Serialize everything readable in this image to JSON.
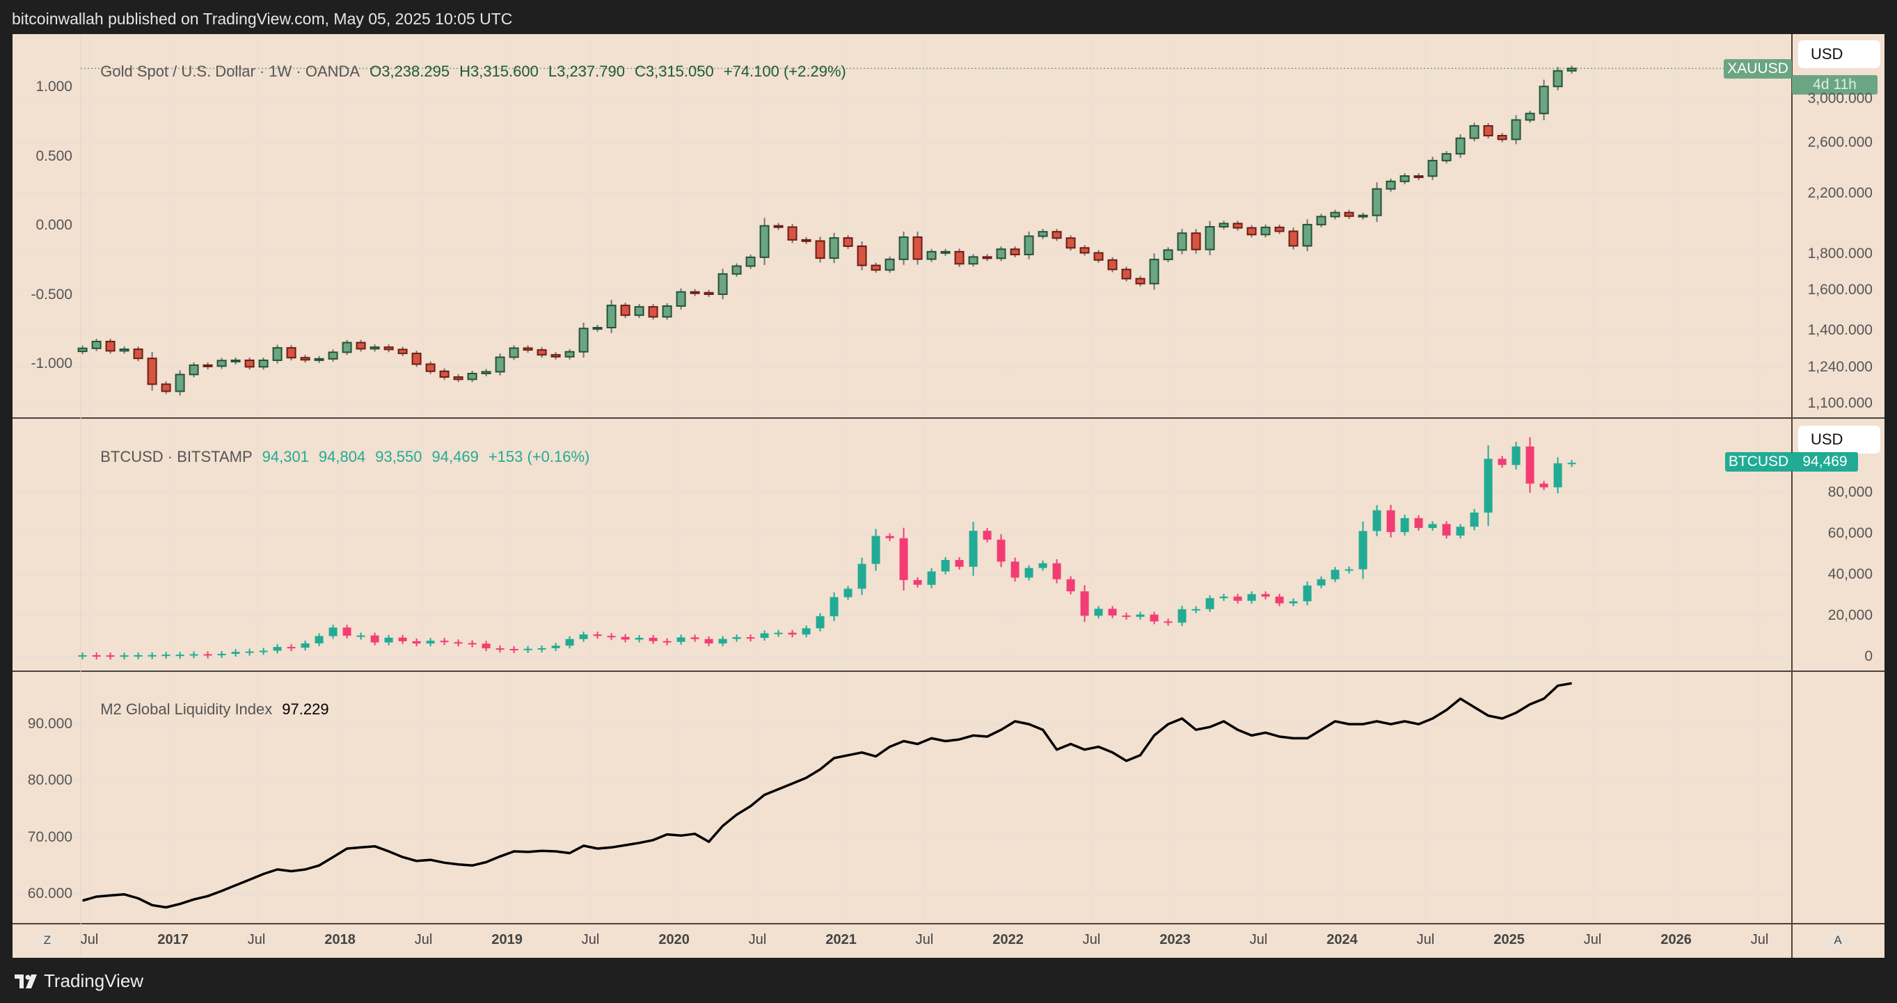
{
  "header": {
    "published": "bitcoinwallah published on TradingView.com, May 05, 2025 10:05 UTC"
  },
  "footer": {
    "brand": "TradingView",
    "logo_icon": "tradingview-logo-icon"
  },
  "time_axis": {
    "labels": [
      {
        "text": "Jul",
        "t": 2016.5
      },
      {
        "text": "2017",
        "t": 2017,
        "year": true
      },
      {
        "text": "Jul",
        "t": 2017.5
      },
      {
        "text": "2018",
        "t": 2018,
        "year": true
      },
      {
        "text": "Jul",
        "t": 2018.5
      },
      {
        "text": "2019",
        "t": 2019,
        "year": true
      },
      {
        "text": "Jul",
        "t": 2019.5
      },
      {
        "text": "2020",
        "t": 2020,
        "year": true
      },
      {
        "text": "Jul",
        "t": 2020.5
      },
      {
        "text": "2021",
        "t": 2021,
        "year": true
      },
      {
        "text": "Jul",
        "t": 2021.5
      },
      {
        "text": "2022",
        "t": 2022,
        "year": true
      },
      {
        "text": "Jul",
        "t": 2022.5
      },
      {
        "text": "2023",
        "t": 2023,
        "year": true
      },
      {
        "text": "Jul",
        "t": 2023.5
      },
      {
        "text": "2024",
        "t": 2024,
        "year": true
      },
      {
        "text": "Jul",
        "t": 2024.5
      },
      {
        "text": "2025",
        "t": 2025,
        "year": true
      },
      {
        "text": "Jul",
        "t": 2025.5
      },
      {
        "text": "2026",
        "t": 2026,
        "year": true
      },
      {
        "text": "Jul",
        "t": 2026.5
      }
    ],
    "zoom_button": "Z",
    "auto_button": "A"
  },
  "chart_data": [
    {
      "type": "candlestick",
      "name": "gold",
      "legend": {
        "title": "Gold Spot / U.S. Dollar · 1W · OANDA",
        "open": "O3,238.295",
        "high": "H3,315.600",
        "low": "L3,237.790",
        "close": "C3,315.050",
        "change": "+74.100 (+2.29%)"
      },
      "symbol_tag": "XAUUSD",
      "countdown": "4d 11h",
      "currency": "USD",
      "scale": "log",
      "right_ticks": [
        "3,000.000",
        "2,600.000",
        "2,200.000",
        "1,800.000",
        "1,600.000",
        "1,400.000",
        "1,240.000",
        "1,100.000"
      ],
      "right_tick_values": [
        3000,
        2600,
        2200,
        1800,
        1600,
        1400,
        1240,
        1100
      ],
      "left_ticks": [
        "1.000",
        "0.500",
        "0.000",
        "-0.500",
        "-1.000"
      ],
      "start": "2016-06",
      "interval": "monthly",
      "closes": [
        1320,
        1350,
        1309,
        1316,
        1277,
        1173,
        1146,
        1211,
        1249,
        1245,
        1268,
        1269,
        1242,
        1269,
        1322,
        1280,
        1271,
        1275,
        1303,
        1345,
        1318,
        1325,
        1315,
        1298,
        1253,
        1224,
        1201,
        1192,
        1215,
        1222,
        1282,
        1321,
        1313,
        1292,
        1284,
        1305,
        1409,
        1413,
        1520,
        1472,
        1513,
        1464,
        1517,
        1589,
        1585,
        1577,
        1686,
        1730,
        1781,
        1975,
        1967,
        1886,
        1879,
        1776,
        1898,
        1847,
        1734,
        1708,
        1769,
        1903,
        1770,
        1814,
        1814,
        1743,
        1783,
        1775,
        1829,
        1797,
        1909,
        1937,
        1897,
        1837,
        1807,
        1765,
        1711,
        1660,
        1633,
        1768,
        1824,
        1928,
        1827,
        1969,
        1990,
        1962,
        1919,
        1965,
        1940,
        1849,
        1983,
        2036,
        2063,
        2039,
        2044,
        2230,
        2286,
        2327,
        2326,
        2448,
        2503,
        2635,
        2744,
        2657,
        2625,
        2798,
        2858,
        3124,
        3289,
        3315.05
      ],
      "last": 3315.05,
      "colors": {
        "up": "#6ba583",
        "up_border": "#225437",
        "down": "#d75442",
        "down_border": "#6b1e14",
        "wick": "#737375",
        "legend_values": "#1e5a3a"
      }
    },
    {
      "type": "candlestick",
      "name": "btc",
      "legend": {
        "title": "BTCUSD · BITSTAMP",
        "open": "94,301",
        "high": "94,804",
        "low": "93,550",
        "close": "94,469",
        "change": "+153 (+0.16%)"
      },
      "symbol_tag": "BTCUSD",
      "last_label": "94,469",
      "currency": "USD",
      "scale": "linear",
      "right_ticks": [
        "80,000",
        "60,000",
        "40,000",
        "20,000",
        "0"
      ],
      "right_tick_values": [
        80000,
        60000,
        40000,
        20000,
        0
      ],
      "start": "2016-06",
      "interval": "monthly",
      "closes": [
        670,
        624,
        575,
        609,
        700,
        742,
        963,
        965,
        1190,
        1080,
        1350,
        2300,
        2500,
        2880,
        4700,
        4340,
        6450,
        10000,
        14150,
        10200,
        10300,
        6900,
        9240,
        7500,
        6400,
        7730,
        7030,
        6620,
        6320,
        4040,
        3740,
        3440,
        3820,
        4100,
        5320,
        8570,
        10800,
        10080,
        9600,
        8300,
        9150,
        7550,
        7200,
        9350,
        8550,
        6420,
        8630,
        9450,
        9140,
        11350,
        11650,
        10780,
        13800,
        19700,
        28990,
        33100,
        45200,
        58800,
        57700,
        37300,
        35000,
        41500,
        47100,
        43800,
        61300,
        57000,
        46300,
        38500,
        43200,
        45500,
        37700,
        31800,
        19900,
        23300,
        20050,
        19400,
        20500,
        17150,
        16550,
        23100,
        23150,
        28500,
        29250,
        27200,
        30450,
        29250,
        25950,
        26950,
        34650,
        37700,
        42300,
        42550,
        61200,
        71300,
        60700,
        67500,
        62700,
        64600,
        59000,
        63300,
        70200,
        96400,
        93400,
        102400,
        84300,
        82500,
        94200,
        94469
      ],
      "last": 94469,
      "colors": {
        "up": "#22ab94",
        "down": "#f23d74",
        "legend_values": "#22ab94"
      }
    },
    {
      "type": "line",
      "name": "m2",
      "legend": {
        "title": "M2 Global Liquidity Index",
        "value": "97.229"
      },
      "left_ticks": [
        "90.000",
        "80.000",
        "70.000",
        "60.000"
      ],
      "left_tick_values": [
        90,
        80,
        70,
        60
      ],
      "start": "2016-06",
      "interval": "monthly",
      "values": [
        58.8,
        59.5,
        59.7,
        59.9,
        59.2,
        58.0,
        57.6,
        58.2,
        59.0,
        59.6,
        60.5,
        61.5,
        62.5,
        63.5,
        64.3,
        64.0,
        64.3,
        65.0,
        66.5,
        68.0,
        68.2,
        68.4,
        67.5,
        66.5,
        65.8,
        66.0,
        65.5,
        65.2,
        65.0,
        65.6,
        66.6,
        67.5,
        67.4,
        67.6,
        67.5,
        67.2,
        68.5,
        68.0,
        68.2,
        68.6,
        69.0,
        69.5,
        70.5,
        70.3,
        70.6,
        69.2,
        72.0,
        74.0,
        75.5,
        77.5,
        78.5,
        79.5,
        80.5,
        82.0,
        84.0,
        84.5,
        85.0,
        84.3,
        86.0,
        87.0,
        86.5,
        87.5,
        87.0,
        87.3,
        88.0,
        87.8,
        89.0,
        90.5,
        90.0,
        89.0,
        85.5,
        86.5,
        85.5,
        86.0,
        85.0,
        83.5,
        84.5,
        88.0,
        90.0,
        91.0,
        89.0,
        89.5,
        90.5,
        89.0,
        88.0,
        88.5,
        87.8,
        87.5,
        87.5,
        89.0,
        90.5,
        90.0,
        90.0,
        90.5,
        90.0,
        90.5,
        90.0,
        91.0,
        92.5,
        94.5,
        93.0,
        91.5,
        91.0,
        92.0,
        93.5,
        94.5,
        96.8,
        97.229
      ],
      "colors": {
        "line": "#000000"
      }
    }
  ],
  "colors": {
    "background": "#f2e0d0",
    "grid": "#ebdfd5",
    "frame": "#1f1f1f"
  }
}
